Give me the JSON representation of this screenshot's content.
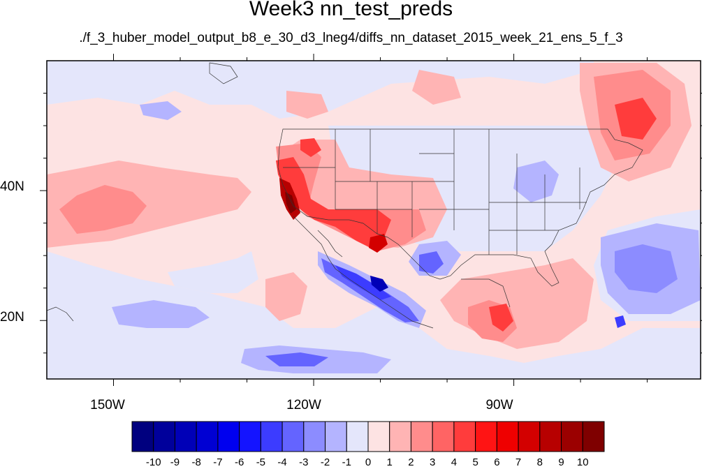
{
  "title": "Week3 nn_test_preds",
  "subtitle": "./f_3_huber_model_output_b8_e_30_d3_lneg4/diffs_nn_dataset_2015_week_21_ens_5_f_3",
  "map": {
    "projection": "cylindrical-equidistant",
    "lon_range": [
      -160,
      -62
    ],
    "lat_range": [
      11,
      60
    ],
    "lat_ticks": [
      {
        "value": 40,
        "label": "40N"
      },
      {
        "value": 20,
        "label": "20N"
      }
    ],
    "lon_ticks": [
      {
        "value": -150,
        "label": "150W"
      },
      {
        "value": -120,
        "label": "120W"
      },
      {
        "value": -90,
        "label": "90W"
      }
    ]
  },
  "colorbar": {
    "labels": [
      "-10",
      "-9",
      "-8",
      "-7",
      "-6",
      "-5",
      "-4",
      "-3",
      "-2",
      "-1",
      "0",
      "1",
      "2",
      "3",
      "4",
      "5",
      "6",
      "7",
      "8",
      "9",
      "10"
    ],
    "colors": [
      "#00007f",
      "#00009b",
      "#0000b7",
      "#0000d3",
      "#0000ef",
      "#1414ff",
      "#3c3cff",
      "#6464ff",
      "#8c8cff",
      "#b4b4ff",
      "#e4e6fb",
      "#fde3e3",
      "#ffb4b4",
      "#ff8c8c",
      "#ff6464",
      "#ff3c3c",
      "#ff1414",
      "#ef0000",
      "#d30000",
      "#b70000",
      "#9b0000",
      "#7f0000"
    ]
  }
}
